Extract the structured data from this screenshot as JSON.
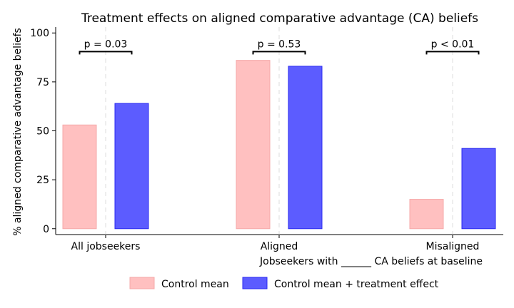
{
  "chart_data": {
    "type": "bar",
    "title": "Treatment effects on aligned comparative advantage (CA) beliefs",
    "xlabel": "Jobseekers with ______ CA beliefs at baseline",
    "ylabel": "% aligned comparative advantage beliefs",
    "categories": [
      "All jobseekers",
      "Aligned",
      "Misaligned"
    ],
    "series": [
      {
        "name": "Control mean",
        "values": [
          53,
          86,
          15
        ],
        "color": "#ffc0c0"
      },
      {
        "name": "Control mean + treatment effect",
        "values": [
          64,
          83,
          41
        ],
        "color": "#5c5cff"
      }
    ],
    "pvalues": [
      "p = 0.03",
      "p = 0.53",
      "p < 0.01"
    ],
    "ylim": [
      -3,
      103
    ],
    "yticks": [
      0,
      25,
      50,
      75,
      100
    ],
    "grid": false,
    "legend_position": "bottom"
  }
}
